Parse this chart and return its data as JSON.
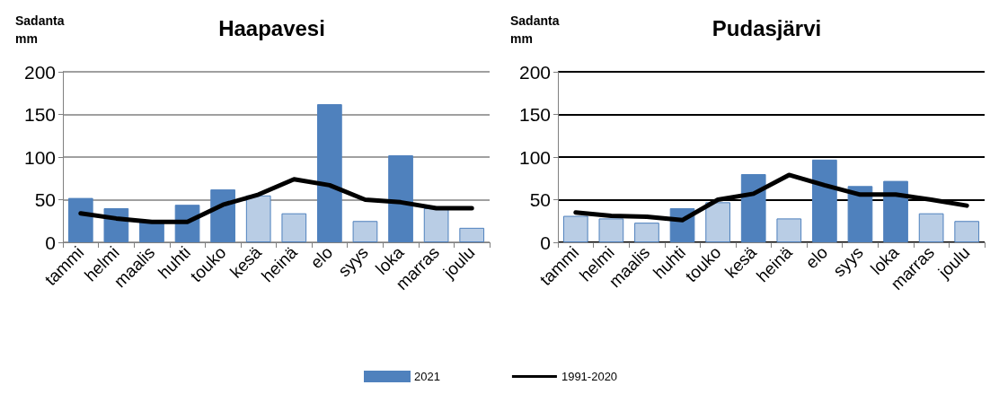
{
  "chart_data": [
    {
      "type": "bar",
      "title": "Haapavesi",
      "ylabel": "Sadanta\nmm",
      "categories": [
        "tammi",
        "helmi",
        "maalis",
        "huhti",
        "touko",
        "kesä",
        "heinä",
        "elo",
        "syys",
        "loka",
        "marras",
        "joulu"
      ],
      "series": [
        {
          "name": "2021",
          "color": "#4f81bd",
          "colors": [
            "#4f81bd",
            "#4f81bd",
            "#4f81bd",
            "#4f81bd",
            "#4f81bd",
            "#b9cde5",
            "#b9cde5",
            "#4f81bd",
            "#b9cde5",
            "#4f81bd",
            "#b9cde5",
            "#b9cde5"
          ],
          "values": [
            52,
            40,
            26,
            44,
            62,
            55,
            34,
            162,
            25,
            102,
            40,
            17
          ]
        },
        {
          "name": "1991-2020",
          "type": "line",
          "color": "#000000",
          "values": [
            34,
            28,
            24,
            24,
            44,
            56,
            74,
            67,
            50,
            47,
            40,
            40
          ]
        }
      ],
      "ylim": [
        0,
        200
      ],
      "yticks": [
        0,
        50,
        100,
        150,
        200
      ],
      "grid": "y",
      "legend": "bottom",
      "marker": "none"
    },
    {
      "type": "bar",
      "title": "Pudasjärvi",
      "ylabel": "Sadanta\nmm",
      "categories": [
        "tammi",
        "helmi",
        "maalis",
        "huhti",
        "touko",
        "kesä",
        "heinä",
        "elo",
        "syys",
        "loka",
        "marras",
        "joulu"
      ],
      "series": [
        {
          "color": "#4f81bd",
          "colors": [
            "#b9cde5",
            "#b9cde5",
            "#b9cde5",
            "#4f81bd",
            "#b9cde5",
            "#4f81bd",
            "#b9cde5",
            "#4f81bd",
            "#4f81bd",
            "#4f81bd",
            "#b9cde5",
            "#b9cde5"
          ],
          "values": [
            31,
            28,
            23,
            40,
            47,
            80,
            28,
            97,
            66,
            72,
            34,
            25
          ]
        },
        {
          "type": "line",
          "color": "#000000",
          "values": [
            35,
            31,
            30,
            26,
            50,
            57,
            79,
            67,
            56,
            56,
            50,
            43
          ]
        }
      ],
      "ylim": [
        0,
        200
      ],
      "yticks": [
        0,
        50,
        100,
        150,
        200
      ],
      "grid": "y",
      "legend": false,
      "marker": "none"
    }
  ]
}
